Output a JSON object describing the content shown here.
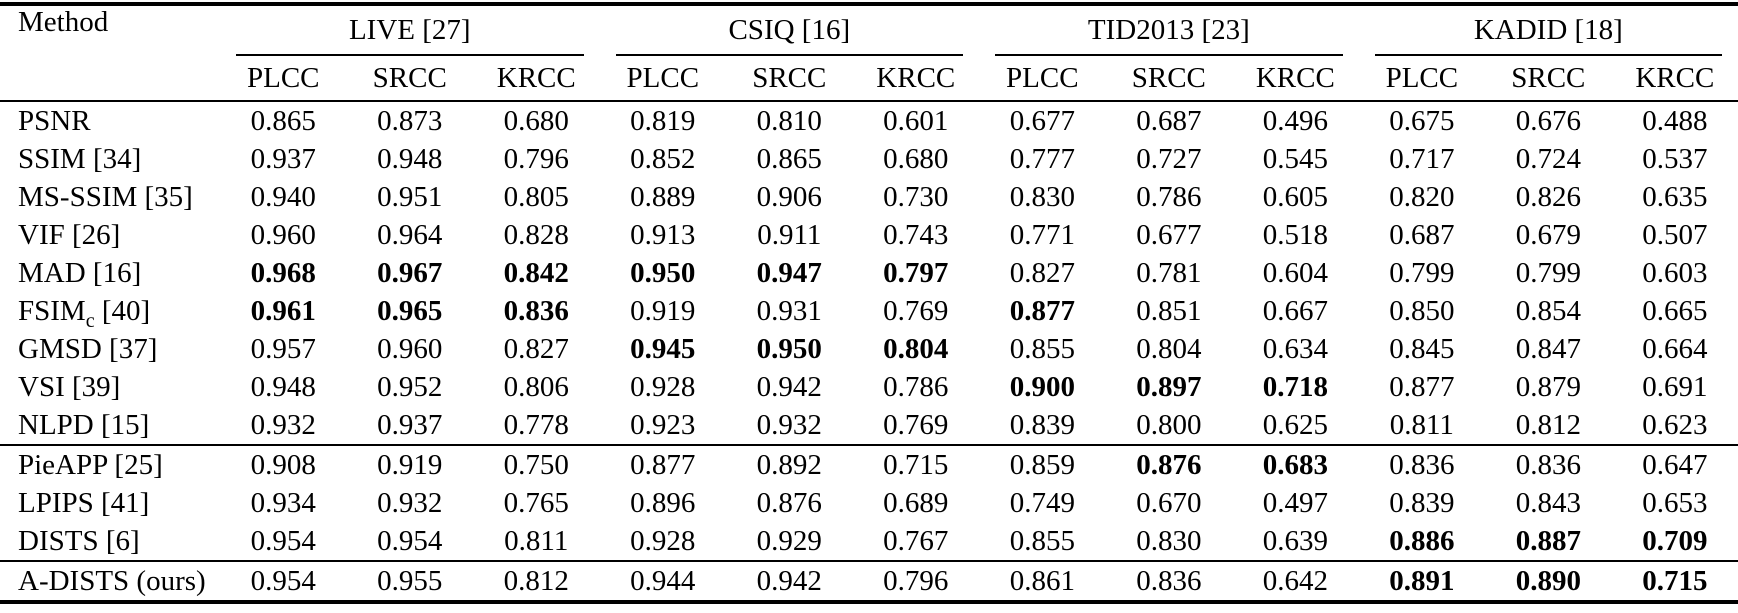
{
  "colors": {
    "background": "#ffffff",
    "text": "#000000",
    "rule": "#000000"
  },
  "table": {
    "method_header": "Method",
    "groups": [
      {
        "label": "LIVE [27]"
      },
      {
        "label": "CSIQ [16]"
      },
      {
        "label": "TID2013 [23]"
      },
      {
        "label": "KADID [18]"
      }
    ],
    "metrics": [
      "PLCC",
      "SRCC",
      "KRCC"
    ],
    "sections": [
      {
        "rows": [
          {
            "method": "PSNR",
            "sub": "",
            "method_rest": "",
            "values": [
              "0.865",
              "0.873",
              "0.680",
              "0.819",
              "0.810",
              "0.601",
              "0.677",
              "0.687",
              "0.496",
              "0.675",
              "0.676",
              "0.488"
            ],
            "bold": [
              0,
              0,
              0,
              0,
              0,
              0,
              0,
              0,
              0,
              0,
              0,
              0
            ]
          },
          {
            "method": "SSIM [34]",
            "sub": "",
            "method_rest": "",
            "values": [
              "0.937",
              "0.948",
              "0.796",
              "0.852",
              "0.865",
              "0.680",
              "0.777",
              "0.727",
              "0.545",
              "0.717",
              "0.724",
              "0.537"
            ],
            "bold": [
              0,
              0,
              0,
              0,
              0,
              0,
              0,
              0,
              0,
              0,
              0,
              0
            ]
          },
          {
            "method": "MS-SSIM [35]",
            "sub": "",
            "method_rest": "",
            "values": [
              "0.940",
              "0.951",
              "0.805",
              "0.889",
              "0.906",
              "0.730",
              "0.830",
              "0.786",
              "0.605",
              "0.820",
              "0.826",
              "0.635"
            ],
            "bold": [
              0,
              0,
              0,
              0,
              0,
              0,
              0,
              0,
              0,
              0,
              0,
              0
            ]
          },
          {
            "method": "VIF [26]",
            "sub": "",
            "method_rest": "",
            "values": [
              "0.960",
              "0.964",
              "0.828",
              "0.913",
              "0.911",
              "0.743",
              "0.771",
              "0.677",
              "0.518",
              "0.687",
              "0.679",
              "0.507"
            ],
            "bold": [
              0,
              0,
              0,
              0,
              0,
              0,
              0,
              0,
              0,
              0,
              0,
              0
            ]
          },
          {
            "method": "MAD [16]",
            "sub": "",
            "method_rest": "",
            "values": [
              "0.968",
              "0.967",
              "0.842",
              "0.950",
              "0.947",
              "0.797",
              "0.827",
              "0.781",
              "0.604",
              "0.799",
              "0.799",
              "0.603"
            ],
            "bold": [
              1,
              1,
              1,
              1,
              1,
              1,
              0,
              0,
              0,
              0,
              0,
              0
            ]
          },
          {
            "method": "FSIM",
            "sub": "c",
            "method_rest": " [40]",
            "values": [
              "0.961",
              "0.965",
              "0.836",
              "0.919",
              "0.931",
              "0.769",
              "0.877",
              "0.851",
              "0.667",
              "0.850",
              "0.854",
              "0.665"
            ],
            "bold": [
              1,
              1,
              1,
              0,
              0,
              0,
              1,
              0,
              0,
              0,
              0,
              0
            ]
          },
          {
            "method": "GMSD [37]",
            "sub": "",
            "method_rest": "",
            "values": [
              "0.957",
              "0.960",
              "0.827",
              "0.945",
              "0.950",
              "0.804",
              "0.855",
              "0.804",
              "0.634",
              "0.845",
              "0.847",
              "0.664"
            ],
            "bold": [
              0,
              0,
              0,
              1,
              1,
              1,
              0,
              0,
              0,
              0,
              0,
              0
            ]
          },
          {
            "method": "VSI [39]",
            "sub": "",
            "method_rest": "",
            "values": [
              "0.948",
              "0.952",
              "0.806",
              "0.928",
              "0.942",
              "0.786",
              "0.900",
              "0.897",
              "0.718",
              "0.877",
              "0.879",
              "0.691"
            ],
            "bold": [
              0,
              0,
              0,
              0,
              0,
              0,
              1,
              1,
              1,
              0,
              0,
              0
            ]
          },
          {
            "method": "NLPD [15]",
            "sub": "",
            "method_rest": "",
            "values": [
              "0.932",
              "0.937",
              "0.778",
              "0.923",
              "0.932",
              "0.769",
              "0.839",
              "0.800",
              "0.625",
              "0.811",
              "0.812",
              "0.623"
            ],
            "bold": [
              0,
              0,
              0,
              0,
              0,
              0,
              0,
              0,
              0,
              0,
              0,
              0
            ]
          }
        ]
      },
      {
        "rows": [
          {
            "method": "PieAPP [25]",
            "sub": "",
            "method_rest": "",
            "values": [
              "0.908",
              "0.919",
              "0.750",
              "0.877",
              "0.892",
              "0.715",
              "0.859",
              "0.876",
              "0.683",
              "0.836",
              "0.836",
              "0.647"
            ],
            "bold": [
              0,
              0,
              0,
              0,
              0,
              0,
              0,
              1,
              1,
              0,
              0,
              0
            ]
          },
          {
            "method": "LPIPS [41]",
            "sub": "",
            "method_rest": "",
            "values": [
              "0.934",
              "0.932",
              "0.765",
              "0.896",
              "0.876",
              "0.689",
              "0.749",
              "0.670",
              "0.497",
              "0.839",
              "0.843",
              "0.653"
            ],
            "bold": [
              0,
              0,
              0,
              0,
              0,
              0,
              0,
              0,
              0,
              0,
              0,
              0
            ]
          },
          {
            "method": "DISTS [6]",
            "sub": "",
            "method_rest": "",
            "values": [
              "0.954",
              "0.954",
              "0.811",
              "0.928",
              "0.929",
              "0.767",
              "0.855",
              "0.830",
              "0.639",
              "0.886",
              "0.887",
              "0.709"
            ],
            "bold": [
              0,
              0,
              0,
              0,
              0,
              0,
              0,
              0,
              0,
              1,
              1,
              1
            ]
          }
        ]
      },
      {
        "rows": [
          {
            "method": "A-DISTS (ours)",
            "sub": "",
            "method_rest": "",
            "values": [
              "0.954",
              "0.955",
              "0.812",
              "0.944",
              "0.942",
              "0.796",
              "0.861",
              "0.836",
              "0.642",
              "0.891",
              "0.890",
              "0.715"
            ],
            "bold": [
              0,
              0,
              0,
              0,
              0,
              0,
              0,
              0,
              0,
              1,
              1,
              1
            ]
          }
        ]
      }
    ]
  }
}
